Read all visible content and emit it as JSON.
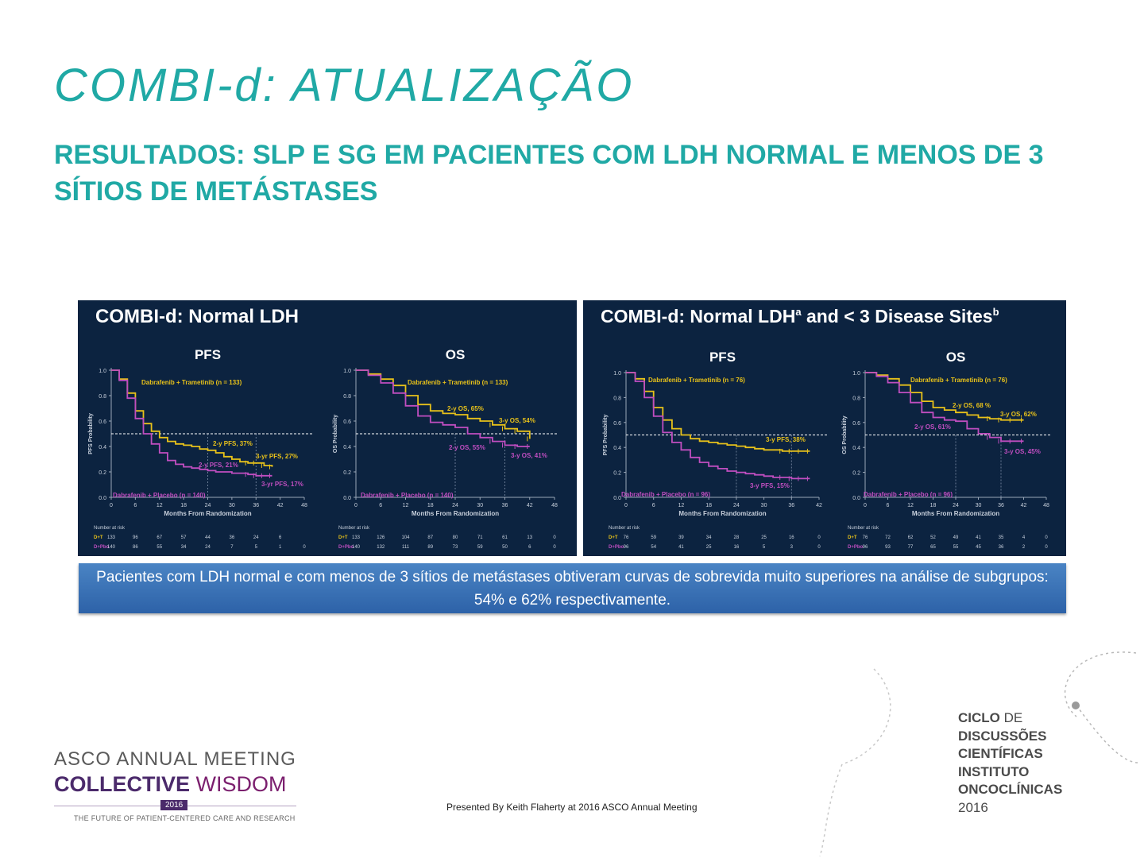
{
  "slide": {
    "title": "COMBI-d: ATUALIZAÇÃO",
    "subtitle": "RESULTADOS: SLP E SG EM PACIENTES COM LDH NORMAL E MENOS DE 3 SÍTIOS DE METÁSTASES",
    "callout": "Pacientes com LDH normal e com menos de 3 sítios de metástases obtiveram curvas de sobrevida muito superiores na análise de subgrupos: 54% e 62% respectivamente.",
    "presented_by": "Presented By Keith Flaherty at 2016 ASCO Annual Meeting"
  },
  "asco_logo": {
    "line1": "ASCO ANNUAL MEETING",
    "line2a": "COLLECTIVE",
    "line2b": "WISDOM",
    "year": "2016",
    "tagline": "THE FUTURE OF PATIENT-CENTERED CARE AND RESEARCH"
  },
  "ciclo_logo": {
    "l1a": "CICLO",
    "l1b": "DE",
    "l2": "DISCUSSÕES",
    "l3": "CIENTÍFICAS",
    "l4": "INSTITUTO",
    "l5": "ONCOCLÍNICAS",
    "l6": "2016"
  },
  "colors": {
    "teal": "#20a9a5",
    "panel": "#0c2340",
    "dt_line": "#e8c21a",
    "pbo_line": "#c04ec0"
  },
  "chart_data": [
    {
      "type": "line",
      "panel_title": "COMBI-d: Normal LDH",
      "title": "PFS",
      "xlabel": "Months From Randomization",
      "ylabel": "PFS Probability",
      "xlim": [
        0,
        48
      ],
      "ylim": [
        0,
        1
      ],
      "xticks": [
        "0",
        "6",
        "12",
        "18",
        "24",
        "30",
        "36",
        "42",
        "48"
      ],
      "yticks": [
        "0.0",
        "0.2",
        "0.4",
        "0.6",
        "0.8",
        "1.0"
      ],
      "series": [
        {
          "name": "Dabrafenib + Trametinib (n = 133)",
          "color": "#e8c21a",
          "x": [
            0,
            2,
            4,
            6,
            8,
            10,
            12,
            14,
            16,
            18,
            20,
            22,
            24,
            26,
            28,
            30,
            32,
            34,
            36,
            38,
            40
          ],
          "y": [
            1.0,
            0.93,
            0.82,
            0.68,
            0.58,
            0.52,
            0.47,
            0.44,
            0.42,
            0.41,
            0.4,
            0.38,
            0.37,
            0.35,
            0.32,
            0.3,
            0.28,
            0.27,
            0.27,
            0.25,
            0.24
          ]
        },
        {
          "name": "Dabrafenib + Placebo (n = 140)",
          "color": "#c04ec0",
          "x": [
            0,
            2,
            4,
            6,
            8,
            10,
            12,
            14,
            16,
            18,
            20,
            22,
            24,
            26,
            28,
            30,
            32,
            34,
            36,
            38,
            40
          ],
          "y": [
            1.0,
            0.92,
            0.78,
            0.62,
            0.5,
            0.42,
            0.35,
            0.29,
            0.26,
            0.24,
            0.23,
            0.22,
            0.21,
            0.2,
            0.2,
            0.19,
            0.19,
            0.18,
            0.17,
            0.17,
            0.17
          ]
        }
      ],
      "annotations": [
        "2-y PFS, 37%",
        "3-yr PFS, 27%",
        "2-y PFS, 21%",
        "3-yr PFS, 17%"
      ],
      "risk_table": {
        "header": "Number at risk",
        "rows": [
          {
            "label": "D+T",
            "values": [
              "133",
              "96",
              "67",
              "57",
              "44",
              "36",
              "24",
              "6",
              ""
            ]
          },
          {
            "label": "D+Pbo",
            "values": [
              "140",
              "86",
              "55",
              "34",
              "24",
              "7",
              "5",
              "1",
              "0"
            ]
          }
        ]
      }
    },
    {
      "type": "line",
      "title": "OS",
      "xlabel": "Months From Randomization",
      "ylabel": "OS Probability",
      "xlim": [
        0,
        48
      ],
      "ylim": [
        0,
        1
      ],
      "xticks": [
        "0",
        "6",
        "12",
        "18",
        "24",
        "30",
        "36",
        "42",
        "48"
      ],
      "yticks": [
        "0.0",
        "0.2",
        "0.4",
        "0.6",
        "0.8",
        "1.0"
      ],
      "series": [
        {
          "name": "Dabrafenib + Trametinib (n = 133)",
          "color": "#e8c21a",
          "x": [
            0,
            3,
            6,
            9,
            12,
            15,
            18,
            21,
            24,
            27,
            30,
            33,
            36,
            39,
            42
          ],
          "y": [
            1.0,
            0.97,
            0.93,
            0.88,
            0.8,
            0.73,
            0.68,
            0.66,
            0.65,
            0.62,
            0.6,
            0.57,
            0.54,
            0.52,
            0.46
          ]
        },
        {
          "name": "Dabrafenib + Placebo (n = 140)",
          "color": "#c04ec0",
          "x": [
            0,
            3,
            6,
            9,
            12,
            15,
            18,
            21,
            24,
            27,
            30,
            33,
            36,
            39,
            42
          ],
          "y": [
            1.0,
            0.96,
            0.9,
            0.82,
            0.72,
            0.64,
            0.59,
            0.57,
            0.55,
            0.5,
            0.47,
            0.44,
            0.41,
            0.4,
            0.4
          ]
        }
      ],
      "annotations": [
        "2-y OS, 65%",
        "3-y OS, 54%",
        "2-y OS, 55%",
        "3-y OS, 41%"
      ],
      "risk_table": {
        "header": "Number at risk",
        "rows": [
          {
            "label": "D+T",
            "values": [
              "133",
              "126",
              "104",
              "87",
              "80",
              "71",
              "61",
              "13",
              "0"
            ]
          },
          {
            "label": "D+Pbo",
            "values": [
              "140",
              "132",
              "111",
              "89",
              "73",
              "59",
              "50",
              "6",
              "0"
            ]
          }
        ]
      }
    },
    {
      "type": "line",
      "panel_title": "COMBI-d: Normal LDH",
      "panel_title_sup1": "a",
      "panel_title_mid": " and < 3 Disease Sites",
      "panel_title_sup2": "b",
      "title": "PFS",
      "xlabel": "Months From Randomization",
      "ylabel": "PFS Probability",
      "xlim": [
        0,
        42
      ],
      "ylim": [
        0,
        1
      ],
      "xticks": [
        "0",
        "6",
        "12",
        "18",
        "24",
        "30",
        "36",
        "42"
      ],
      "yticks": [
        "0.0",
        "0.2",
        "0.4",
        "0.6",
        "0.8",
        "1.0"
      ],
      "series": [
        {
          "name": "Dabrafenib + Trametinib (n = 76)",
          "color": "#e8c21a",
          "x": [
            0,
            2,
            4,
            6,
            8,
            10,
            12,
            14,
            16,
            18,
            20,
            22,
            24,
            26,
            28,
            30,
            32,
            34,
            36,
            38,
            40
          ],
          "y": [
            1.0,
            0.95,
            0.85,
            0.72,
            0.62,
            0.55,
            0.5,
            0.47,
            0.45,
            0.44,
            0.43,
            0.42,
            0.41,
            0.4,
            0.39,
            0.38,
            0.38,
            0.37,
            0.37,
            0.37,
            0.37
          ]
        },
        {
          "name": "Dabrafenib + Placebo (n = 96)",
          "color": "#c04ec0",
          "x": [
            0,
            2,
            4,
            6,
            8,
            10,
            12,
            14,
            16,
            18,
            20,
            22,
            24,
            26,
            28,
            30,
            32,
            34,
            36,
            38,
            40
          ],
          "y": [
            1.0,
            0.93,
            0.8,
            0.65,
            0.52,
            0.44,
            0.38,
            0.32,
            0.28,
            0.25,
            0.23,
            0.21,
            0.2,
            0.19,
            0.18,
            0.17,
            0.16,
            0.16,
            0.15,
            0.15,
            0.15
          ]
        }
      ],
      "annotations": [
        "3-y PFS, 38%",
        "3-y PFS, 15%"
      ],
      "risk_table": {
        "header": "Number at risk",
        "rows": [
          {
            "label": "D+T",
            "values": [
              "76",
              "59",
              "39",
              "34",
              "28",
              "25",
              "16",
              "0"
            ]
          },
          {
            "label": "D+Pbo",
            "values": [
              "96",
              "54",
              "41",
              "25",
              "16",
              "5",
              "3",
              "0"
            ]
          }
        ]
      }
    },
    {
      "type": "line",
      "title": "OS",
      "xlabel": "Months From Randomization",
      "ylabel": "OS Probability",
      "xlim": [
        0,
        48
      ],
      "ylim": [
        0,
        1
      ],
      "xticks": [
        "0",
        "6",
        "12",
        "18",
        "24",
        "30",
        "36",
        "42",
        "48"
      ],
      "yticks": [
        "0.0",
        "0.2",
        "0.4",
        "0.6",
        "0.8",
        "1.0"
      ],
      "series": [
        {
          "name": "Dabrafenib + Trametinib (n = 76)",
          "color": "#e8c21a",
          "x": [
            0,
            3,
            6,
            9,
            12,
            15,
            18,
            21,
            24,
            27,
            30,
            33,
            36,
            39,
            42
          ],
          "y": [
            1.0,
            0.98,
            0.95,
            0.9,
            0.84,
            0.77,
            0.72,
            0.7,
            0.68,
            0.66,
            0.64,
            0.63,
            0.62,
            0.62,
            0.62
          ]
        },
        {
          "name": "Dabrafenib + Placebo (n = 96)",
          "color": "#c04ec0",
          "x": [
            0,
            3,
            6,
            9,
            12,
            15,
            18,
            21,
            24,
            27,
            30,
            33,
            36,
            39,
            42
          ],
          "y": [
            1.0,
            0.97,
            0.92,
            0.84,
            0.76,
            0.68,
            0.64,
            0.62,
            0.61,
            0.55,
            0.51,
            0.48,
            0.45,
            0.45,
            0.45
          ]
        }
      ],
      "annotations": [
        "2-y OS, 68 %",
        "3-y OS, 62%",
        "2-y OS, 61%",
        "3-y OS, 45%"
      ],
      "risk_table": {
        "header": "Number at risk",
        "rows": [
          {
            "label": "D+T",
            "values": [
              "76",
              "72",
              "62",
              "52",
              "49",
              "41",
              "35",
              "4",
              "0"
            ]
          },
          {
            "label": "D+Pbo",
            "values": [
              "96",
              "93",
              "77",
              "65",
              "55",
              "45",
              "36",
              "2",
              "0"
            ]
          }
        ]
      }
    }
  ]
}
